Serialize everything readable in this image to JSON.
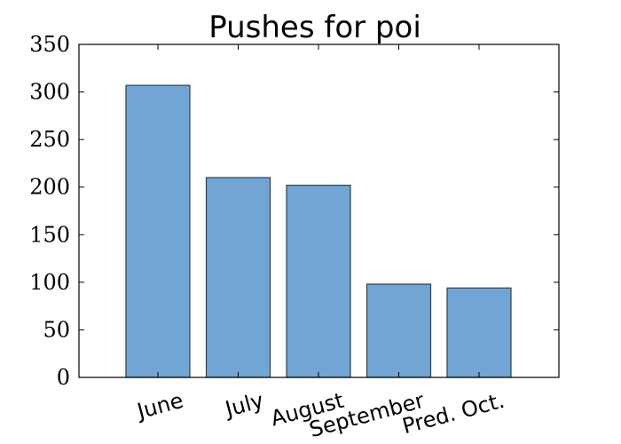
{
  "chart_data": {
    "type": "bar",
    "title": "Pushes for poi",
    "categories": [
      "June",
      "July",
      "August",
      "September",
      "Pred. Oct."
    ],
    "values": [
      307,
      210,
      202,
      98,
      94
    ],
    "ylim": [
      0,
      350
    ],
    "yticks": [
      0,
      50,
      100,
      150,
      200,
      250,
      300,
      350
    ],
    "xlabel": "",
    "ylabel": "",
    "grid": false,
    "colors": {
      "bar": "#72a5d3",
      "bar_edge": "#2f3f4c"
    }
  }
}
